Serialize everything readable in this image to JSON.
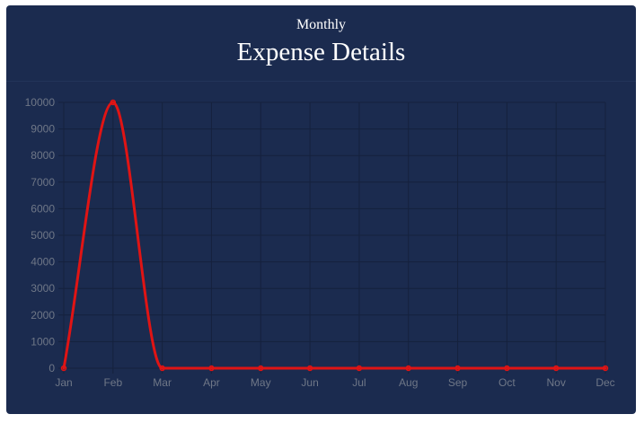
{
  "header": {
    "subtitle": "Monthly",
    "title": "Expense Details"
  },
  "colors": {
    "card_background": "#1b2b4f",
    "grid": "#15213d",
    "series_line": "#e01414",
    "tick_text": "#6f7787",
    "title_text": "#ffffff"
  },
  "chart_data": {
    "type": "line",
    "title": "Expense Details",
    "subtitle": "Monthly",
    "xlabel": "",
    "ylabel": "",
    "categories": [
      "Jan",
      "Feb",
      "Mar",
      "Apr",
      "May",
      "Jun",
      "Jul",
      "Aug",
      "Sep",
      "Oct",
      "Nov",
      "Dec"
    ],
    "series": [
      {
        "values": [
          0,
          10000,
          0,
          0,
          0,
          0,
          0,
          0,
          0,
          0,
          0,
          0
        ]
      }
    ],
    "ylim": [
      0,
      10000
    ],
    "yticks": [
      0,
      1000,
      2000,
      3000,
      4000,
      5000,
      6000,
      7000,
      8000,
      9000,
      10000
    ],
    "grid": true,
    "legend": "none",
    "smooth": true
  }
}
